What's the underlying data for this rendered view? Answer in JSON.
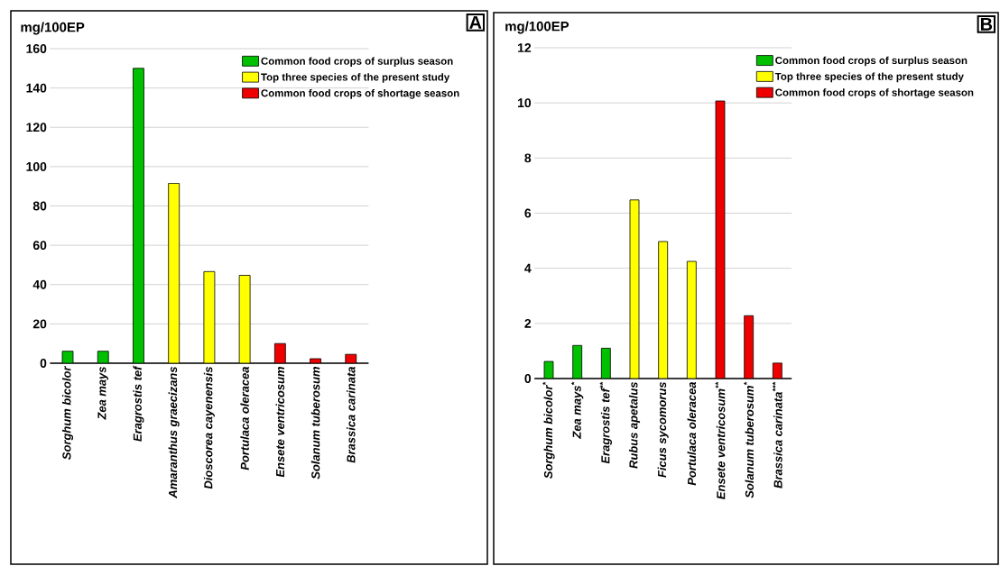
{
  "chart_data": [
    {
      "type": "bar",
      "ylabel": "mg/100EP",
      "annotations": [
        "A"
      ],
      "categories": [
        "Sorghum bicolor",
        "Zea mays",
        "Eragrostis tef",
        "Amaranthus graecizans",
        "Dioscorea cayenensis",
        "Portulaca oleracea",
        "Ensete ventricosum",
        "Solanum tuberosum",
        "Brassica carinata"
      ],
      "series": [
        {
          "name": "Common food crops of surplus season",
          "color": "#00c000",
          "values": [
            6.1,
            6.1,
            150,
            null,
            null,
            null,
            null,
            null,
            null
          ]
        },
        {
          "name": "Top three species of the present study",
          "color": "#ffff00",
          "values": [
            null,
            null,
            null,
            91.5,
            46.6,
            44.7,
            null,
            null,
            null
          ]
        },
        {
          "name": "Common food crops of shortage season",
          "color": "#ee0000",
          "values": [
            null,
            null,
            null,
            null,
            null,
            null,
            10,
            2.3,
            4.5
          ]
        }
      ],
      "ylim": [
        0,
        160
      ],
      "yticks": [
        0,
        20,
        40,
        60,
        80,
        100,
        120,
        140,
        160
      ],
      "grid": "y",
      "legend": "top right"
    },
    {
      "type": "bar",
      "ylabel": "mg/100EP",
      "annotations": [
        "B"
      ],
      "categories": [
        "Sorghum bicolor$^{*}$",
        "Zea mays$^{*}$",
        "Eragrostis tef$^{**}$",
        "Rubus apetalus",
        "Ficus sycomorus",
        "Portulaca oleracea",
        "Ensete ventricosum$^{**}$",
        "Solanum tuberosum$^{*}$",
        "Brassica carinata$^{***}$"
      ],
      "series": [
        {
          "name": "Common food crops of surplus season",
          "color": "#00c000",
          "values": [
            0.62,
            1.2,
            1.1,
            null,
            null,
            null,
            null,
            null,
            null
          ]
        },
        {
          "name": "Top three species of the present study",
          "color": "#ffff00",
          "values": [
            null,
            null,
            null,
            6.48,
            4.97,
            4.25,
            null,
            null,
            null
          ]
        },
        {
          "name": "Common food crops of shortage season",
          "color": "#ee0000",
          "values": [
            null,
            null,
            null,
            null,
            null,
            null,
            10.07,
            2.28,
            0.56
          ]
        }
      ],
      "ylim": [
        0,
        12
      ],
      "yticks": [
        0,
        2,
        4,
        6,
        8,
        10,
        12
      ],
      "grid": "y",
      "legend": "top right"
    }
  ]
}
